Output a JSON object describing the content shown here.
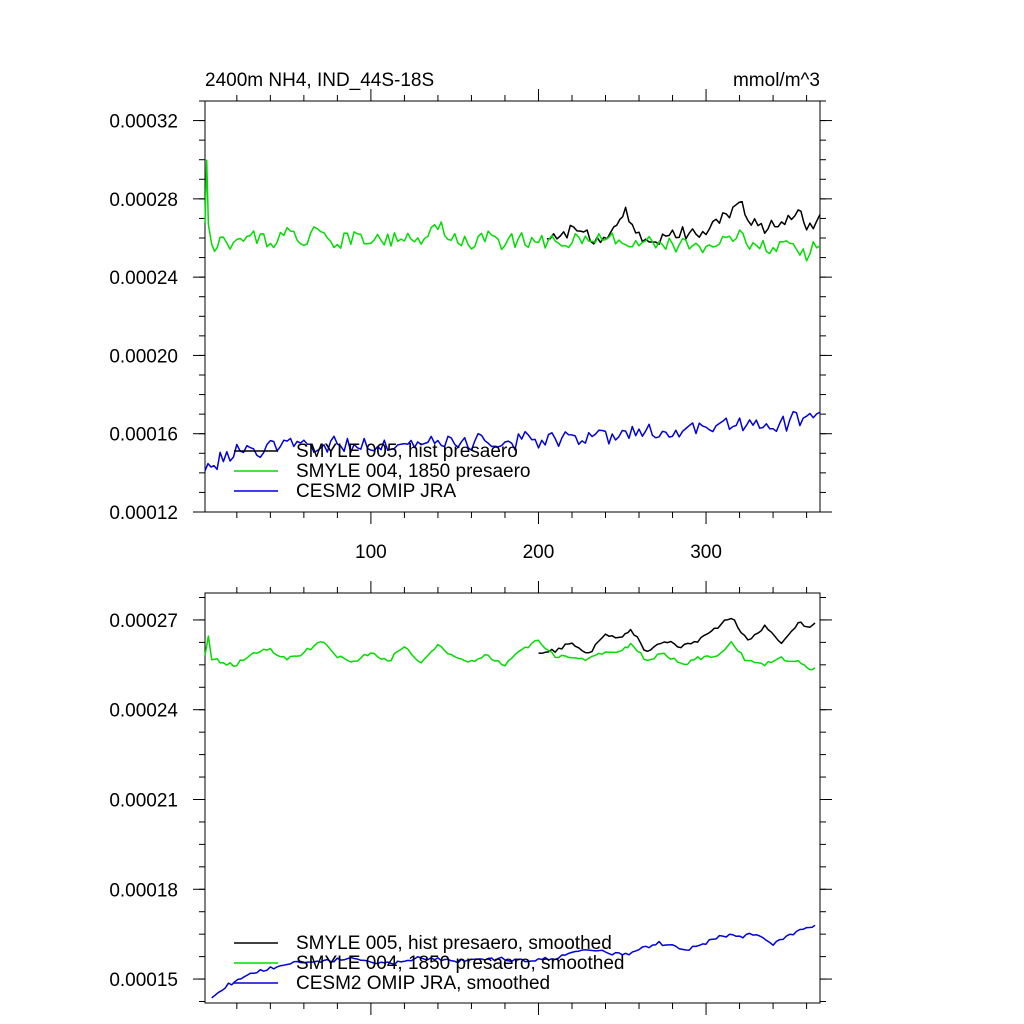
{
  "header": {
    "title": "2400m NH4, IND_44S-18S",
    "units": "mmol/m^3"
  },
  "colors": {
    "black_series": "#000000",
    "green_series": "#00dd00",
    "blue_series": "#0000dd",
    "axes": "#000000",
    "background": "#ffffff"
  },
  "chart_data": [
    {
      "type": "line",
      "title": "2400m NH4, IND_44S-18S",
      "subtitle": "mmol/m^3",
      "xlabel": "",
      "ylabel": "",
      "xlim": [
        1,
        368
      ],
      "ylim": [
        0.00012,
        0.00033
      ],
      "x_ticks": [
        100,
        200,
        300
      ],
      "y_ticks": [
        "0.00012",
        "0.00016",
        "0.00020",
        "0.00024",
        "0.00028",
        "0.00032"
      ],
      "grid": false,
      "legend_position": "bottom-left",
      "series": [
        {
          "name": "SMYLE 005, hist presaero",
          "color": "#000000",
          "x": [
            205,
            215,
            225,
            235,
            245,
            252,
            260,
            270,
            280,
            290,
            300,
            310,
            318,
            325,
            335,
            345,
            355,
            360,
            368
          ],
          "values": [
            0.000258,
            0.000263,
            0.000262,
            0.000259,
            0.000263,
            0.000275,
            0.000262,
            0.000259,
            0.000263,
            0.000262,
            0.000265,
            0.00027,
            0.000278,
            0.000272,
            0.000262,
            0.000268,
            0.000274,
            0.000265,
            0.000272
          ]
        },
        {
          "name": "SMYLE 004, 1850 presaero",
          "color": "#00dd00",
          "x": [
            1,
            2,
            3,
            5,
            10,
            20,
            30,
            40,
            50,
            60,
            70,
            80,
            90,
            100,
            110,
            120,
            130,
            140,
            150,
            160,
            170,
            180,
            190,
            200,
            210,
            220,
            230,
            240,
            250,
            260,
            270,
            280,
            290,
            300,
            310,
            320,
            330,
            340,
            350,
            360,
            368
          ],
          "values": [
            0.000265,
            0.000303,
            0.000268,
            0.000256,
            0.000258,
            0.000259,
            0.000261,
            0.000257,
            0.000262,
            0.000258,
            0.000266,
            0.000258,
            0.000261,
            0.000257,
            0.000259,
            0.000262,
            0.000257,
            0.000266,
            0.000259,
            0.000258,
            0.000262,
            0.000257,
            0.000261,
            0.000259,
            0.000257,
            0.000259,
            0.000256,
            0.000258,
            0.00026,
            0.000256,
            0.000257,
            0.000255,
            0.000258,
            0.000254,
            0.000256,
            0.00026,
            0.000256,
            0.000254,
            0.000258,
            0.000252,
            0.000256
          ]
        },
        {
          "name": "CESM2 OMIP JRA",
          "color": "#0000dd",
          "x": [
            1,
            10,
            20,
            40,
            60,
            80,
            100,
            120,
            140,
            160,
            180,
            200,
            220,
            240,
            260,
            280,
            300,
            310,
            320,
            330,
            340,
            350,
            360,
            368
          ],
          "values": [
            0.000141,
            0.000147,
            0.00015,
            0.000153,
            0.000154,
            0.000155,
            0.000154,
            0.000155,
            0.000156,
            0.000155,
            0.000156,
            0.000157,
            0.000158,
            0.000159,
            0.00016,
            0.000161,
            0.000162,
            0.000166,
            0.000165,
            0.000166,
            0.000163,
            0.000166,
            0.000168,
            0.000171
          ]
        }
      ]
    },
    {
      "type": "line",
      "title": "",
      "xlabel": "",
      "ylabel": "",
      "xlim": [
        1,
        368
      ],
      "ylim": [
        0.000142,
        0.000279
      ],
      "x_ticks": [
        100,
        200,
        300
      ],
      "y_ticks": [
        "0.00015",
        "0.00018",
        "0.00021",
        "0.00024",
        "0.00027"
      ],
      "grid": false,
      "legend_position": "bottom-left",
      "series": [
        {
          "name": "SMYLE 005, hist presaero, smoothed",
          "color": "#000000",
          "x": [
            200,
            210,
            220,
            230,
            240,
            250,
            255,
            265,
            275,
            285,
            295,
            305,
            315,
            325,
            335,
            345,
            355,
            362,
            365
          ],
          "values": [
            0.000259,
            0.00026,
            0.000262,
            0.000259,
            0.000265,
            0.000264,
            0.000267,
            0.000259,
            0.000263,
            0.000261,
            0.000263,
            0.000267,
            0.000271,
            0.000263,
            0.000268,
            0.000262,
            0.000269,
            0.000267,
            0.000269
          ]
        },
        {
          "name": "SMYLE 004, 1850 presaero, smoothed",
          "color": "#00dd00",
          "x": [
            1,
            3,
            5,
            10,
            20,
            30,
            40,
            50,
            60,
            70,
            80,
            90,
            100,
            110,
            120,
            130,
            140,
            150,
            160,
            170,
            180,
            190,
            200,
            210,
            220,
            230,
            240,
            250,
            255,
            265,
            275,
            285,
            295,
            305,
            315,
            325,
            335,
            345,
            355,
            362,
            365
          ],
          "values": [
            0.000258,
            0.000264,
            0.000257,
            0.000256,
            0.000255,
            0.000259,
            0.00026,
            0.000257,
            0.000259,
            0.000263,
            0.000258,
            0.000256,
            0.000259,
            0.000256,
            0.000261,
            0.000255,
            0.000262,
            0.000257,
            0.000256,
            0.000258,
            0.000255,
            0.00026,
            0.000263,
            0.000258,
            0.000257,
            0.000257,
            0.000259,
            0.00026,
            0.000262,
            0.000256,
            0.000259,
            0.000255,
            0.000257,
            0.000258,
            0.000262,
            0.000256,
            0.000255,
            0.000257,
            0.000256,
            0.000253,
            0.000254
          ]
        },
        {
          "name": "CESM2 OMIP JRA, smoothed",
          "color": "#0000dd",
          "x": [
            5,
            15,
            30,
            50,
            70,
            90,
            110,
            130,
            150,
            170,
            190,
            210,
            230,
            250,
            270,
            290,
            300,
            310,
            320,
            330,
            340,
            350,
            360,
            365
          ],
          "values": [
            0.000144,
            0.000148,
            0.000152,
            0.000155,
            0.000156,
            0.000157,
            0.000155,
            0.000157,
            0.000156,
            0.000157,
            0.000156,
            0.000157,
            0.00016,
            0.000158,
            0.000162,
            0.00016,
            0.000162,
            0.000165,
            0.000164,
            0.000165,
            0.000162,
            0.000165,
            0.000167,
            0.000168
          ]
        }
      ]
    }
  ]
}
